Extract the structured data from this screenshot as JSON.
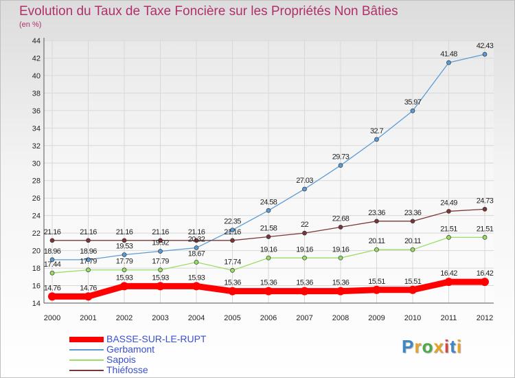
{
  "title": "Evolution du Taux de Taxe Foncière sur les Propriétés Non Bâties",
  "subtitle": "(en %)",
  "brand": {
    "text": "Proxiti",
    "colors": [
      "#3f86c7",
      "#e8a326",
      "#4ea94a",
      "#e8a326",
      "#d94444",
      "#3f86c7",
      "#e8a326"
    ]
  },
  "chart_data": {
    "type": "line",
    "x": [
      "2000",
      "2001",
      "2002",
      "2003",
      "2004",
      "2005",
      "2006",
      "2007",
      "2008",
      "2009",
      "2010",
      "2011",
      "2012"
    ],
    "ylim": [
      14,
      44
    ],
    "yticks": [
      "14",
      "16",
      "18",
      "20",
      "22",
      "24",
      "26",
      "28",
      "30",
      "32",
      "34",
      "36",
      "38",
      "40",
      "42",
      "44"
    ],
    "grid": true,
    "legend_position": "bottom-left",
    "series": [
      {
        "name": "BASSE-SUR-LE-RUPT",
        "color": "#ff0000",
        "thick": true,
        "values": [
          14.76,
          14.76,
          15.93,
          15.93,
          15.93,
          15.36,
          15.36,
          15.36,
          15.36,
          15.51,
          15.51,
          16.42,
          16.42
        ],
        "labels": [
          "14.76",
          "14.76",
          "15.93",
          "15.93",
          "15.93",
          "15.36",
          "15.36",
          "15.36",
          "15.36",
          "15.51",
          "15.51",
          "16.42",
          "16.42"
        ]
      },
      {
        "name": "Gerbamont",
        "color": "#5b9bd5",
        "thick": false,
        "values": [
          18.96,
          18.96,
          19.53,
          19.92,
          20.32,
          22.35,
          24.58,
          27.03,
          29.73,
          32.7,
          35.97,
          41.48,
          42.43
        ],
        "labels": [
          "18.96",
          "18.96",
          "19.53",
          "19.92",
          "20.32",
          "22.35",
          "24.58",
          "27.03",
          "29.73",
          "32.7",
          "35.97",
          "41.48",
          "42.43"
        ]
      },
      {
        "name": "Sapois",
        "color": "#99dd66",
        "thick": false,
        "values": [
          17.44,
          17.79,
          17.79,
          17.79,
          18.67,
          17.74,
          19.16,
          19.16,
          19.16,
          20.11,
          20.11,
          21.51,
          21.51
        ],
        "labels": [
          "17.44",
          "17.79",
          "17.79",
          "17.79",
          "18.67",
          "17.74",
          "19.16",
          "19.16",
          "19.16",
          "20.11",
          "20.11",
          "21.51",
          "21.51"
        ]
      },
      {
        "name": "Thiéfosse",
        "color": "#7a3636",
        "thick": false,
        "values": [
          21.16,
          21.16,
          21.16,
          21.16,
          21.16,
          21.16,
          21.58,
          22.0,
          22.68,
          23.36,
          23.36,
          24.49,
          24.73
        ],
        "labels": [
          "21.16",
          "21.16",
          "21.16",
          "21.16",
          "21.16",
          "21.16",
          "21.58",
          "22",
          "22.68",
          "23.36",
          "23.36",
          "24.49",
          "24.73"
        ]
      }
    ]
  }
}
